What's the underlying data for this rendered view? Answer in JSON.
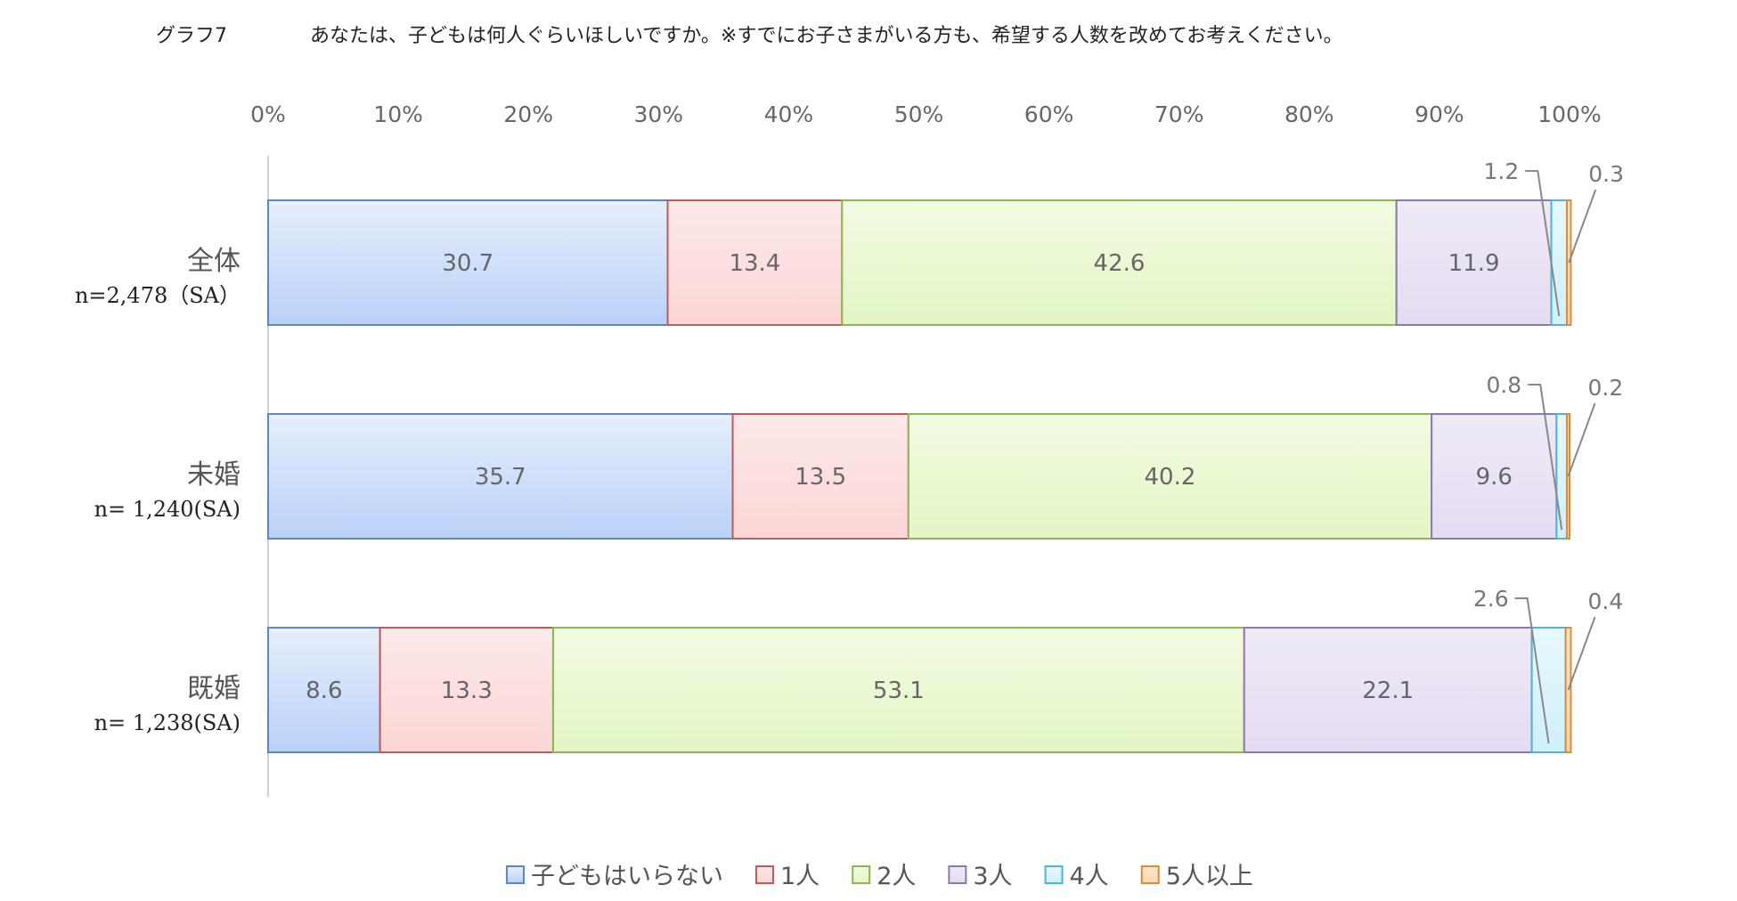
{
  "header": {
    "graph_label": "グラフ7",
    "question": "あなたは、子どもは何人ぐらいほしいですか。※すでにお子さまがいる方も、希望する人数を改めてお考えください。"
  },
  "chart_data": {
    "type": "bar",
    "orientation": "horizontal",
    "stacked": true,
    "percent_stacked": true,
    "xlim": [
      0,
      100
    ],
    "x_ticks": [
      "0%",
      "10%",
      "20%",
      "30%",
      "40%",
      "50%",
      "60%",
      "70%",
      "80%",
      "90%",
      "100%"
    ],
    "grid": false,
    "legend_position": "bottom",
    "categories": [
      {
        "label": "全体",
        "note": "n=2,478（SA）"
      },
      {
        "label": "未婚",
        "note": "n= 1,240(SA)"
      },
      {
        "label": "既婚",
        "note": "n= 1,238(SA)"
      }
    ],
    "series": [
      {
        "name": "子どもはいらない",
        "values": [
          30.7,
          35.7,
          8.6
        ],
        "color": "#b9d1f7",
        "color_top": "#e6effc",
        "border": "#5f86c4"
      },
      {
        "name": "1人",
        "values": [
          13.4,
          13.5,
          13.3
        ],
        "color": "#fbd6d6",
        "color_top": "#fde9e9",
        "border": "#c35a5a"
      },
      {
        "name": "2人",
        "values": [
          42.6,
          40.2,
          53.1
        ],
        "color": "#e3f6c4",
        "color_top": "#f1fbe2",
        "border": "#8bb653"
      },
      {
        "name": "3人",
        "values": [
          11.9,
          9.6,
          22.1
        ],
        "color": "#e4dcf1",
        "color_top": "#efeaf7",
        "border": "#8b78b0"
      },
      {
        "name": "4人",
        "values": [
          1.2,
          0.8,
          2.6
        ],
        "color": "#cff0fb",
        "color_top": "#e6f8fd",
        "border": "#4fb3d6"
      },
      {
        "name": "5人以上",
        "values": [
          0.3,
          0.2,
          0.4
        ],
        "color": "#fbd7ac",
        "color_top": "#fde8cf",
        "border": "#e0893a"
      }
    ]
  }
}
